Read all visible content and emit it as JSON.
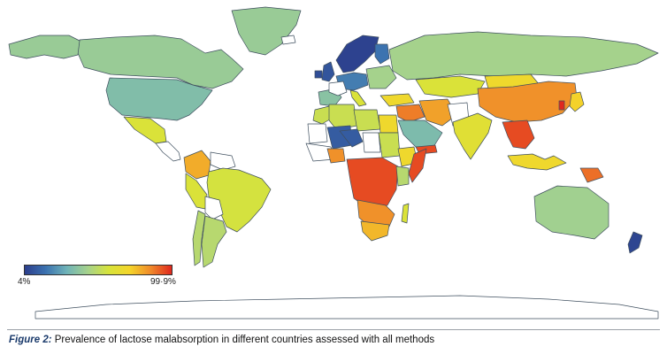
{
  "caption": {
    "label": "Figure 2:",
    "text": " Prevalence of lactose malabsorption in different countries assessed with all methods"
  },
  "legend": {
    "min_label": "4%",
    "max_label": "99·9%",
    "min_value": 4,
    "max_value": 99.9,
    "gradient": [
      "#2c3e8c",
      "#3b72b0",
      "#6fb3b8",
      "#a5d28c",
      "#d7e33a",
      "#f4d52a",
      "#f08a2a",
      "#e0281e"
    ]
  },
  "colors": {
    "no_data": "#ffffff",
    "border": "#3f4f5f",
    "ocean": "#ffffff"
  },
  "map_data": {
    "metric": "lactose malabsorption prevalence (%)",
    "regions": [
      {
        "name": "Canada",
        "value": 42
      },
      {
        "name": "Alaska",
        "value": 42
      },
      {
        "name": "Greenland",
        "value": 42
      },
      {
        "name": "United States",
        "value": 36
      },
      {
        "name": "Mexico",
        "value": 60
      },
      {
        "name": "Colombia",
        "value": 80
      },
      {
        "name": "Brazil",
        "value": 58
      },
      {
        "name": "Peru",
        "value": 60
      },
      {
        "name": "Chile",
        "value": 50
      },
      {
        "name": "Argentina",
        "value": 50
      },
      {
        "name": "United Kingdom",
        "value": 10
      },
      {
        "name": "Ireland",
        "value": 8
      },
      {
        "name": "Scandinavia",
        "value": 5
      },
      {
        "name": "Finland",
        "value": 18
      },
      {
        "name": "Central Europe",
        "value": 20
      },
      {
        "name": "Eastern Europe",
        "value": 45
      },
      {
        "name": "Iberia",
        "value": 38
      },
      {
        "name": "Italy",
        "value": 60
      },
      {
        "name": "Russia",
        "value": 45
      },
      {
        "name": "Kazakhstan",
        "value": 60
      },
      {
        "name": "Turkey",
        "value": 70
      },
      {
        "name": "Iran",
        "value": 82
      },
      {
        "name": "Middle East",
        "value": 88
      },
      {
        "name": "Arabian Peninsula",
        "value": 35
      },
      {
        "name": "Yemen",
        "value": 95
      },
      {
        "name": "Morocco",
        "value": 55
      },
      {
        "name": "Algeria",
        "value": 55
      },
      {
        "name": "Libya",
        "value": 55
      },
      {
        "name": "Egypt",
        "value": 70
      },
      {
        "name": "Mali",
        "value": 12
      },
      {
        "name": "Niger",
        "value": 12
      },
      {
        "name": "Sudan",
        "value": 55
      },
      {
        "name": "Ethiopia",
        "value": 70
      },
      {
        "name": "Somalia",
        "value": 95
      },
      {
        "name": "Kenya",
        "value": 50
      },
      {
        "name": "Nigeria",
        "value": 85
      },
      {
        "name": "Central Africa",
        "value": 95
      },
      {
        "name": "Southern Africa",
        "value": 85
      },
      {
        "name": "South Africa",
        "value": 78
      },
      {
        "name": "Madagascar",
        "value": 60
      },
      {
        "name": "India",
        "value": 63
      },
      {
        "name": "China",
        "value": 85
      },
      {
        "name": "Mongolia",
        "value": 70
      },
      {
        "name": "South Korea",
        "value": 100
      },
      {
        "name": "Japan",
        "value": 73
      },
      {
        "name": "Southeast Asia",
        "value": 95
      },
      {
        "name": "Indonesia",
        "value": 70
      },
      {
        "name": "Papua New Guinea",
        "value": 90
      },
      {
        "name": "Australia",
        "value": 44
      },
      {
        "name": "New Zealand",
        "value": 6
      }
    ]
  }
}
